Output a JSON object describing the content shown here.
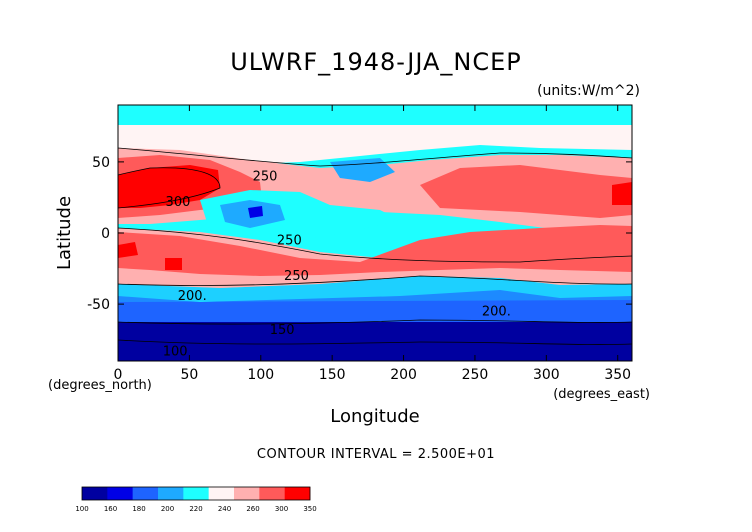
{
  "chart_data": {
    "type": "heatmap",
    "title": "ULWRF_1948-JJA_NCEP",
    "units_label": "(units:W/m^2)",
    "xlabel": "Longitude",
    "ylabel": "Latitude",
    "x_unit_note": "(degrees_east)",
    "y_unit_note": "(degrees_north)",
    "xlim": [
      0,
      360
    ],
    "ylim": [
      -90,
      90
    ],
    "x_ticks": [
      0,
      50,
      100,
      150,
      200,
      250,
      300,
      350
    ],
    "y_ticks": [
      -50,
      0,
      50
    ],
    "contour_interval_text": "CONTOUR INTERVAL = 2.500E+01",
    "contour_labels": [
      {
        "text": "250",
        "lon": 103,
        "lat": 37
      },
      {
        "text": "300",
        "lon": 42,
        "lat": 19
      },
      {
        "text": "250",
        "lon": 120,
        "lat": -8
      },
      {
        "text": "250",
        "lon": 125,
        "lat": -33
      },
      {
        "text": "200.",
        "lon": 52,
        "lat": -47
      },
      {
        "text": "200.",
        "lon": 265,
        "lat": -58
      },
      {
        "text": "150",
        "lon": 115,
        "lat": -71
      },
      {
        "text": "100",
        "lon": 40,
        "lat": -86
      }
    ],
    "colorbar": {
      "tick_labels": [
        "100",
        "160",
        "180",
        "200",
        "220",
        "240",
        "260",
        "300",
        "350"
      ],
      "colors": [
        "#0000a0",
        "#0000e6",
        "#1e64ff",
        "#1eaaff",
        "#1effff",
        "#fff4f4",
        "#ffb0b0",
        "#ff5a5a",
        "#ff0000"
      ]
    },
    "field_description_levels": [
      150,
      200,
      250,
      300
    ]
  }
}
